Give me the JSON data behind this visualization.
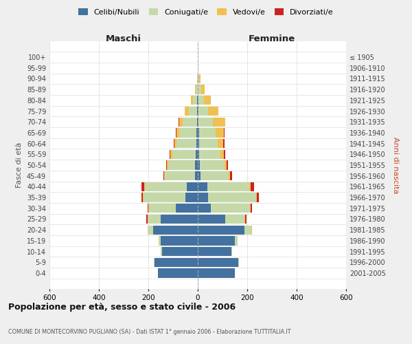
{
  "age_groups": [
    "0-4",
    "5-9",
    "10-14",
    "15-19",
    "20-24",
    "25-29",
    "30-34",
    "35-39",
    "40-44",
    "45-49",
    "50-54",
    "55-59",
    "60-64",
    "65-69",
    "70-74",
    "75-79",
    "80-84",
    "85-89",
    "90-94",
    "95-99",
    "100+"
  ],
  "birth_years": [
    "2001-2005",
    "1996-2000",
    "1991-1995",
    "1986-1990",
    "1981-1985",
    "1976-1980",
    "1971-1975",
    "1966-1970",
    "1961-1965",
    "1956-1960",
    "1951-1955",
    "1946-1950",
    "1941-1945",
    "1936-1940",
    "1931-1935",
    "1926-1930",
    "1921-1925",
    "1916-1920",
    "1911-1915",
    "1906-1910",
    "≤ 1905"
  ],
  "males": {
    "celibi": [
      160,
      175,
      145,
      150,
      180,
      150,
      88,
      50,
      45,
      12,
      10,
      8,
      5,
      5,
      4,
      3,
      2,
      0,
      0,
      0,
      0
    ],
    "coniugati": [
      1,
      2,
      4,
      8,
      22,
      52,
      110,
      170,
      170,
      120,
      110,
      95,
      80,
      70,
      58,
      32,
      18,
      8,
      3,
      1,
      1
    ],
    "vedovi": [
      0,
      0,
      0,
      0,
      1,
      2,
      1,
      2,
      2,
      3,
      5,
      7,
      9,
      12,
      14,
      18,
      8,
      4,
      1,
      0,
      0
    ],
    "divorziati": [
      0,
      0,
      0,
      0,
      1,
      3,
      5,
      5,
      10,
      5,
      3,
      5,
      3,
      2,
      1,
      1,
      0,
      0,
      0,
      0,
      0
    ]
  },
  "females": {
    "nubili": [
      150,
      165,
      135,
      150,
      190,
      110,
      52,
      42,
      38,
      10,
      8,
      6,
      5,
      5,
      4,
      3,
      2,
      1,
      0,
      0,
      0
    ],
    "coniugate": [
      1,
      2,
      4,
      10,
      28,
      80,
      160,
      195,
      170,
      115,
      100,
      85,
      76,
      68,
      58,
      38,
      22,
      12,
      5,
      2,
      1
    ],
    "vedove": [
      0,
      0,
      0,
      1,
      1,
      3,
      2,
      3,
      5,
      5,
      9,
      14,
      23,
      33,
      48,
      42,
      28,
      14,
      5,
      1,
      0
    ],
    "divorziate": [
      0,
      0,
      0,
      0,
      1,
      3,
      5,
      8,
      15,
      8,
      5,
      5,
      4,
      2,
      1,
      0,
      0,
      0,
      0,
      0,
      0
    ]
  },
  "colors": {
    "celibi_nubili": "#4472a0",
    "coniugati": "#c5d9a8",
    "vedovi": "#f0c050",
    "divorziati": "#cc2222"
  },
  "xlim": 600,
  "title": "Popolazione per età, sesso e stato civile - 2006",
  "subtitle": "COMUNE DI MONTECORVINO PUGLIANO (SA) - Dati ISTAT 1° gennaio 2006 - Elaborazione TUTTITALIA.IT",
  "ylabel_left": "Fasce di età",
  "ylabel_right": "Anni di nascita",
  "xlabel_left": "Maschi",
  "xlabel_right": "Femmine",
  "legend_labels": [
    "Celibi/Nubili",
    "Coniugati/e",
    "Vedovi/e",
    "Divorziati/e"
  ],
  "background_color": "#efefef",
  "plot_bg": "#ffffff",
  "grid_color": "#cccccc",
  "separator_color": "#dddddd"
}
